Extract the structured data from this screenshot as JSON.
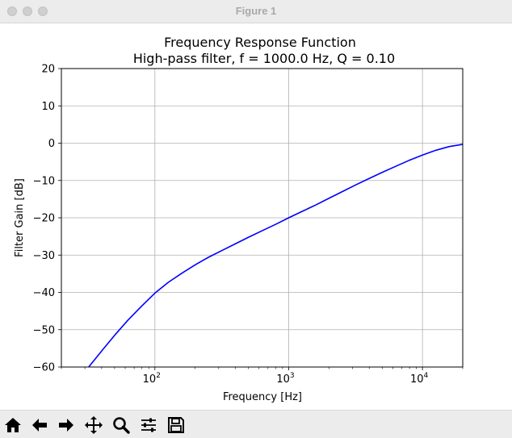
{
  "window": {
    "title": "Figure 1"
  },
  "toolbar": {
    "buttons": [
      {
        "name": "home-icon",
        "tooltip": "Home"
      },
      {
        "name": "back-arrow-icon",
        "tooltip": "Back"
      },
      {
        "name": "forward-arrow-icon",
        "tooltip": "Forward"
      },
      {
        "name": "pan-move-icon",
        "tooltip": "Pan"
      },
      {
        "name": "zoom-magnifier-icon",
        "tooltip": "Zoom"
      },
      {
        "name": "configure-subplots-icon",
        "tooltip": "Configure subplots"
      },
      {
        "name": "save-floppy-icon",
        "tooltip": "Save"
      }
    ]
  },
  "chart_data": {
    "type": "line",
    "title": "Frequency Response Function",
    "subtitle": "High-pass filter, f = 1000.0 Hz, Q = 0.10",
    "xlabel": "Frequency [Hz]",
    "ylabel": "Filter Gain [dB]",
    "x_scale": "log",
    "xlim": [
      20,
      20000
    ],
    "ylim": [
      -60,
      20
    ],
    "x_ticks": [
      {
        "value": 100,
        "base": "10",
        "exp": "2"
      },
      {
        "value": 1000,
        "base": "10",
        "exp": "3"
      },
      {
        "value": 10000,
        "base": "10",
        "exp": "4"
      }
    ],
    "y_ticks": [
      {
        "value": 20,
        "label": "20"
      },
      {
        "value": 10,
        "label": "10"
      },
      {
        "value": 0,
        "label": "0"
      },
      {
        "value": -10,
        "label": "−10"
      },
      {
        "value": -20,
        "label": "−20"
      },
      {
        "value": -30,
        "label": "−30"
      },
      {
        "value": -40,
        "label": "−40"
      },
      {
        "value": -50,
        "label": "−50"
      },
      {
        "value": -60,
        "label": "−60"
      }
    ],
    "grid": true,
    "series": [
      {
        "color": "#0000ff",
        "x": [
          32,
          40,
          50,
          63,
          80,
          100,
          126,
          160,
          200,
          251,
          316,
          398,
          501,
          631,
          794,
          1000,
          1259,
          1585,
          1995,
          2512,
          3162,
          3981,
          5012,
          6310,
          7943,
          10000,
          12589,
          15849,
          20000
        ],
        "y": [
          -60.0,
          -55.7,
          -51.5,
          -47.4,
          -43.6,
          -40.2,
          -37.3,
          -34.8,
          -32.6,
          -30.6,
          -28.8,
          -27.0,
          -25.2,
          -23.5,
          -21.8,
          -20.0,
          -18.3,
          -16.6,
          -14.8,
          -13.0,
          -11.2,
          -9.5,
          -7.8,
          -6.2,
          -4.6,
          -3.2,
          -1.9,
          -0.9,
          -0.3
        ]
      }
    ]
  }
}
